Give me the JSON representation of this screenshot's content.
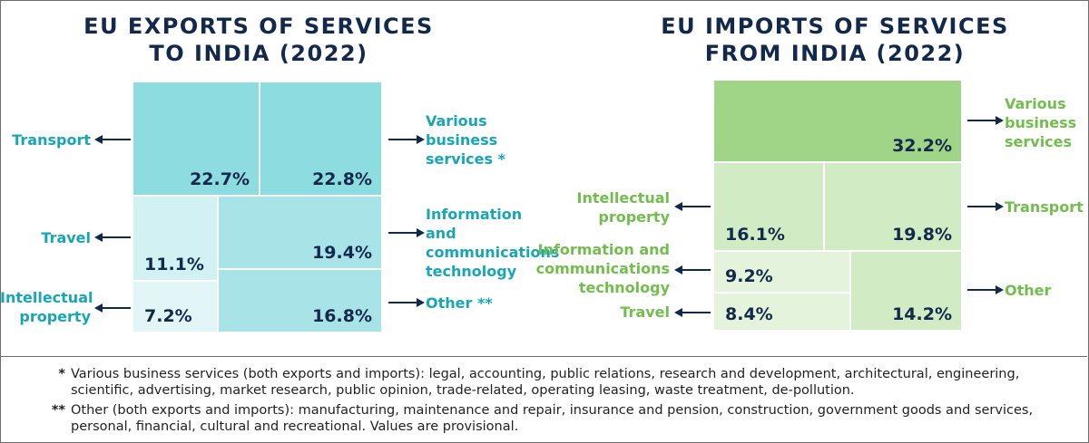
{
  "colors": {
    "title": "#13294b",
    "teal_label": "#18a6b4",
    "green_label": "#73bd4e",
    "teal_dark": "#8ddce0",
    "teal_mid": "#a8e4e7",
    "teal_light": "#d1f1f3",
    "teal_lightest": "#e2f6f7",
    "green_dark": "#a0d486",
    "green_mid": "#d1ebc4",
    "green_light": "#e4f3dc"
  },
  "chart_data": [
    {
      "type": "treemap",
      "title": [
        "EU EXPORTS OF SERVICES",
        "TO INDIA (2022)"
      ],
      "unit": "%",
      "items": [
        {
          "label": [
            "Transport"
          ],
          "value": 22.7,
          "display": "22.7%"
        },
        {
          "label": [
            "Various",
            "business",
            "services *"
          ],
          "value": 22.8,
          "display": "22.8%"
        },
        {
          "label": [
            "Travel"
          ],
          "value": 11.1,
          "display": "11.1%"
        },
        {
          "label": [
            "Information and",
            "communications",
            "technology"
          ],
          "value": 19.4,
          "display": "19.4%"
        },
        {
          "label": [
            "Intellectual",
            "property"
          ],
          "value": 7.2,
          "display": "7.2%"
        },
        {
          "label": [
            "Other **"
          ],
          "value": 16.8,
          "display": "16.8%"
        }
      ]
    },
    {
      "type": "treemap",
      "title": [
        "EU IMPORTS OF SERVICES",
        "FROM INDIA (2022)"
      ],
      "unit": "%",
      "items": [
        {
          "label": [
            "Various",
            "business",
            "services"
          ],
          "value": 32.2,
          "display": "32.2%"
        },
        {
          "label": [
            "Intellectual",
            "property"
          ],
          "value": 16.1,
          "display": "16.1%"
        },
        {
          "label": [
            "Transport"
          ],
          "value": 19.8,
          "display": "19.8%"
        },
        {
          "label": [
            "Information and",
            "communications",
            "technology"
          ],
          "value": 9.2,
          "display": "9.2%"
        },
        {
          "label": [
            "Travel"
          ],
          "value": 8.4,
          "display": "8.4%"
        },
        {
          "label": [
            "Other"
          ],
          "value": 14.2,
          "display": "14.2%"
        }
      ]
    }
  ],
  "footnotes": [
    {
      "mark": "*",
      "text": "Various business services (both exports and imports): legal, accounting, public relations, research and development, architectural, engineering, scientific, advertising, market research, public opinion, trade-related, operating leasing, waste treatment, de-pollution."
    },
    {
      "mark": "**",
      "text": "Other (both exports and imports): manufacturing, maintenance and repair, insurance and pension, construction, government goods and services, personal, financial, cultural and recreational. Values are provisional."
    }
  ]
}
